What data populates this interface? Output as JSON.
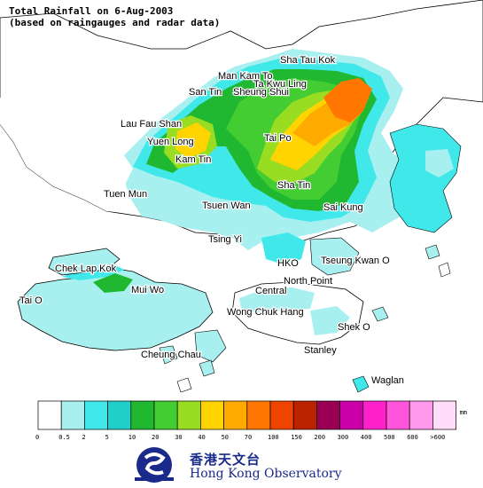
{
  "title_line1": "Total Rainfall on 6-Aug-2003",
  "title_line2": "(based on raingauges and radar data)",
  "places": [
    {
      "id": "sha-tau-kok",
      "label": "Sha Tau Kok"
    },
    {
      "id": "man-kam-to",
      "label": "Man Kam To"
    },
    {
      "id": "ta-kwu-ling",
      "label": "Ta Kwu Ling"
    },
    {
      "id": "san-tin",
      "label": "San Tin"
    },
    {
      "id": "sheung-shui",
      "label": "Sheung Shui"
    },
    {
      "id": "lau-fau-shan",
      "label": "Lau Fau Shan"
    },
    {
      "id": "yuen-long",
      "label": "Yuen Long"
    },
    {
      "id": "tai-po",
      "label": "Tai Po"
    },
    {
      "id": "kam-tin",
      "label": "Kam Tin"
    },
    {
      "id": "tuen-mun",
      "label": "Tuen Mun"
    },
    {
      "id": "sha-tin",
      "label": "Sha Tin"
    },
    {
      "id": "tsuen-wan",
      "label": "Tsuen Wan"
    },
    {
      "id": "sai-kung",
      "label": "Sai Kung"
    },
    {
      "id": "tsing-yi",
      "label": "Tsing Yi"
    },
    {
      "id": "chek-lap-kok",
      "label": "Chek Lap Kok"
    },
    {
      "id": "hko",
      "label": "HKO"
    },
    {
      "id": "tseung-kwan-o",
      "label": "Tseung Kwan O"
    },
    {
      "id": "mui-wo",
      "label": "Mui Wo"
    },
    {
      "id": "north-point",
      "label": "North Point"
    },
    {
      "id": "central",
      "label": "Central"
    },
    {
      "id": "tai-o",
      "label": "Tai O"
    },
    {
      "id": "wong-chuk-hang",
      "label": "Wong Chuk Hang"
    },
    {
      "id": "shek-o",
      "label": "Shek O"
    },
    {
      "id": "cheung-chau",
      "label": "Cheung Chau"
    },
    {
      "id": "stanley",
      "label": "Stanley"
    },
    {
      "id": "waglan",
      "label": "Waglan"
    }
  ],
  "legend": {
    "unit": "mm",
    "colors": [
      "#ffffff",
      "#a8f0f0",
      "#40e8ea",
      "#20d0c8",
      "#20b830",
      "#44cc33",
      "#99dd22",
      "#ffd400",
      "#ffaa00",
      "#ff7700",
      "#ee4400",
      "#bb2200",
      "#990055",
      "#cc00aa",
      "#ff22cc",
      "#ff55dd",
      "#ff99ee",
      "#ffddf8"
    ],
    "ticks": [
      "0",
      "0.5",
      "2",
      "5",
      "10",
      "20",
      "30",
      "40",
      "50",
      "70",
      "100",
      "150",
      "200",
      "300",
      "400",
      "500",
      "600",
      ">600"
    ]
  },
  "logo": {
    "name_cn": "香港天文台",
    "name_en": "Hong Kong Observatory"
  },
  "colors": {
    "coastline": "#000000",
    "logo_blue": "#1a2a8a"
  }
}
